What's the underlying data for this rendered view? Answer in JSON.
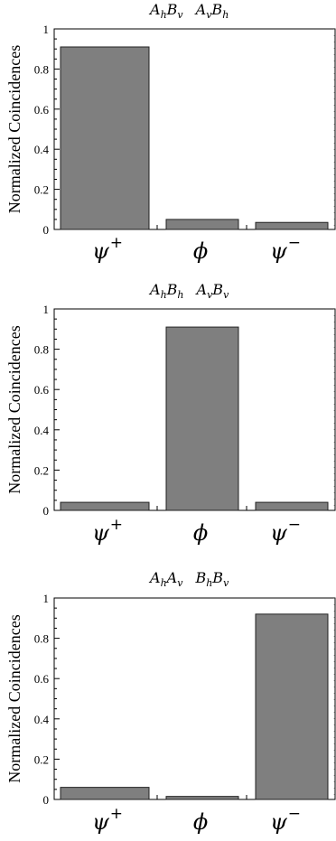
{
  "chart_data": [
    {
      "type": "bar",
      "title": {
        "a": "A",
        "a_sub": "h",
        "b": "B",
        "b_sub": "v",
        "c": "A",
        "c_sub": "v",
        "d": "B",
        "d_sub": "h"
      },
      "ylabel": "Normalized Coincidences",
      "categories": [
        {
          "base": "ψ",
          "sup": "+"
        },
        {
          "base": "ϕ",
          "sup": ""
        },
        {
          "base": "ψ",
          "sup": "−"
        }
      ],
      "values": [
        0.91,
        0.05,
        0.035
      ],
      "ylim": [
        0,
        1
      ],
      "yticks": [
        "0",
        "0.2",
        "0.4",
        "0.6",
        "0.8",
        "1"
      ],
      "bar_color": "#7f7f7f",
      "grid": false
    },
    {
      "type": "bar",
      "title": {
        "a": "A",
        "a_sub": "h",
        "b": "B",
        "b_sub": "h",
        "c": "A",
        "c_sub": "v",
        "d": "B",
        "d_sub": "v"
      },
      "ylabel": "Normalized Coincidences",
      "categories": [
        {
          "base": "ψ",
          "sup": "+"
        },
        {
          "base": "ϕ",
          "sup": ""
        },
        {
          "base": "ψ",
          "sup": "−"
        }
      ],
      "values": [
        0.04,
        0.91,
        0.04
      ],
      "ylim": [
        0,
        1
      ],
      "yticks": [
        "0",
        "0.2",
        "0.4",
        "0.6",
        "0.8",
        "1"
      ],
      "bar_color": "#7f7f7f",
      "grid": false
    },
    {
      "type": "bar",
      "title": {
        "a": "A",
        "a_sub": "h",
        "b": "A",
        "b_sub": "v",
        "c": "B",
        "c_sub": "h",
        "d": "B",
        "d_sub": "v"
      },
      "ylabel": "Normalized Coincidences",
      "categories": [
        {
          "base": "ψ",
          "sup": "+"
        },
        {
          "base": "ϕ",
          "sup": ""
        },
        {
          "base": "ψ",
          "sup": "−"
        }
      ],
      "values": [
        0.06,
        0.015,
        0.92
      ],
      "ylim": [
        0,
        1
      ],
      "yticks": [
        "0",
        "0.2",
        "0.4",
        "0.6",
        "0.8",
        "1"
      ],
      "bar_color": "#7f7f7f",
      "grid": false
    }
  ]
}
